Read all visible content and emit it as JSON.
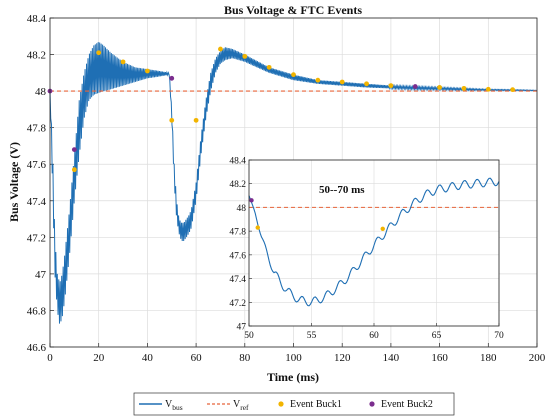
{
  "chart_data": {
    "type": "line",
    "title": "Bus Voltage & FTC Events",
    "xlabel": "Time (ms)",
    "ylabel": "Bus Voltage (V)",
    "xlim": [
      0,
      200
    ],
    "ylim": [
      46.6,
      48.4
    ],
    "x_ticks": [
      "0",
      "20",
      "40",
      "60",
      "80",
      "100",
      "120",
      "140",
      "160",
      "180",
      "200"
    ],
    "y_ticks": [
      "46.6",
      "46.8",
      "47",
      "47.2",
      "47.4",
      "47.6",
      "47.8",
      "48",
      "48.2",
      "48.4"
    ],
    "grid": true,
    "legend_position": "bottom-outside",
    "series": [
      {
        "name": "V_bus",
        "legend_main": "V",
        "legend_sub": "bus",
        "color": "#1f6fb4",
        "style": "solid",
        "envelope_x": [
          0,
          1,
          2,
          3,
          4,
          5,
          6,
          8,
          10,
          12,
          14,
          16,
          18,
          20,
          22,
          25,
          30,
          35,
          40,
          45,
          49,
          50,
          51,
          52,
          53,
          54,
          55,
          56,
          57,
          58,
          60,
          62,
          64,
          66,
          68,
          70,
          72,
          75,
          80,
          90,
          100,
          110,
          120,
          130,
          140,
          150,
          160,
          170,
          180,
          190,
          200
        ],
        "envelope_upper": [
          48.0,
          47.7,
          47.2,
          47.0,
          46.95,
          47.0,
          47.1,
          47.35,
          47.65,
          47.95,
          48.1,
          48.2,
          48.25,
          48.27,
          48.25,
          48.21,
          48.16,
          48.13,
          48.12,
          48.11,
          48.1,
          47.9,
          47.6,
          47.4,
          47.3,
          47.28,
          47.28,
          47.3,
          47.32,
          47.35,
          47.5,
          47.75,
          47.95,
          48.1,
          48.18,
          48.22,
          48.24,
          48.23,
          48.2,
          48.13,
          48.09,
          48.06,
          48.05,
          48.04,
          48.03,
          48.025,
          48.02,
          48.015,
          48.01,
          48.008,
          48.005
        ],
        "envelope_lower": [
          48.0,
          47.5,
          47.0,
          46.8,
          46.72,
          46.76,
          46.85,
          47.1,
          47.4,
          47.65,
          47.85,
          47.95,
          47.98,
          47.99,
          48.0,
          48.01,
          48.03,
          48.05,
          48.07,
          48.08,
          48.09,
          47.85,
          47.5,
          47.3,
          47.22,
          47.18,
          47.18,
          47.2,
          47.22,
          47.25,
          47.4,
          47.65,
          47.85,
          48.0,
          48.1,
          48.15,
          48.17,
          48.18,
          48.16,
          48.1,
          48.06,
          48.04,
          48.03,
          48.02,
          48.015,
          48.01,
          48.008,
          48.005,
          48.004,
          48.003,
          48.002
        ]
      },
      {
        "name": "V_ref",
        "legend_main": "V",
        "legend_sub": "ref",
        "color": "#e8643a",
        "style": "dashed",
        "x": [
          0,
          200
        ],
        "y": [
          48.0,
          48.0
        ]
      }
    ],
    "events": [
      {
        "name": "Event Buck1",
        "color": "#f2b400",
        "points": [
          [
            10,
            47.57
          ],
          [
            20,
            48.21
          ],
          [
            30,
            48.16
          ],
          [
            40,
            48.11
          ],
          [
            50,
            47.84
          ],
          [
            60,
            47.84
          ],
          [
            70,
            48.23
          ],
          [
            80,
            48.19
          ],
          [
            90,
            48.13
          ],
          [
            100,
            48.09
          ],
          [
            110,
            48.06
          ],
          [
            120,
            48.05
          ],
          [
            130,
            48.04
          ],
          [
            140,
            48.03
          ],
          [
            160,
            48.02
          ],
          [
            170,
            48.015
          ],
          [
            180,
            48.01
          ],
          [
            190,
            48.008
          ]
        ]
      },
      {
        "name": "Event Buck2",
        "color": "#7b2d8e",
        "points": [
          [
            0,
            48.0
          ],
          [
            10,
            47.68
          ],
          [
            50,
            48.07
          ],
          [
            150,
            48.025
          ]
        ]
      }
    ],
    "inset": {
      "annotation": "50--70 ms",
      "xlim": [
        50,
        70
      ],
      "ylim": [
        47.0,
        48.4
      ],
      "x_ticks": [
        "50",
        "55",
        "60",
        "65",
        "70"
      ],
      "y_ticks": [
        "47",
        "47.2",
        "47.4",
        "47.6",
        "47.8",
        "48",
        "48.2",
        "48.4"
      ],
      "ref_y": 48.0,
      "curve_x": [
        50,
        50.5,
        51,
        52,
        53,
        54,
        55,
        56,
        57,
        58,
        59,
        60,
        61,
        62,
        63,
        64,
        65,
        66,
        67,
        68,
        69,
        70
      ],
      "curve_y": [
        48.1,
        47.95,
        47.75,
        47.45,
        47.3,
        47.22,
        47.2,
        47.24,
        47.32,
        47.42,
        47.55,
        47.68,
        47.8,
        47.92,
        48.02,
        48.1,
        48.15,
        48.17,
        48.19,
        48.2,
        48.21,
        48.22
      ],
      "buck1_points": [
        [
          50.7,
          47.83
        ],
        [
          60.7,
          47.82
        ]
      ],
      "buck2_points": [
        [
          50.2,
          48.06
        ]
      ]
    }
  }
}
